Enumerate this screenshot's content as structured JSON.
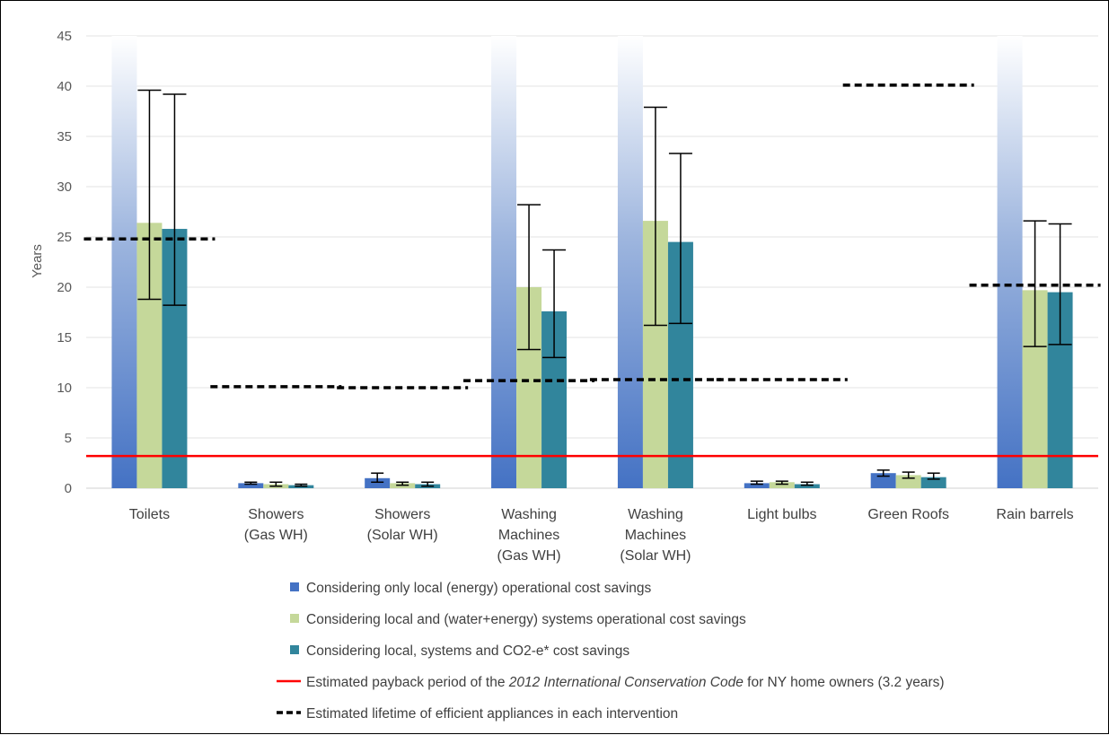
{
  "chart_data": {
    "type": "bar",
    "ylabel": "Years",
    "ylim": [
      0,
      45
    ],
    "yticks": [
      0,
      5,
      10,
      15,
      20,
      25,
      30,
      35,
      40,
      45
    ],
    "grid": true,
    "legend_position": "bottom",
    "categories": [
      [
        "Toilets"
      ],
      [
        "Showers",
        "(Gas WH)"
      ],
      [
        "Showers",
        "(Solar WH)"
      ],
      [
        "Washing",
        "Machines",
        "(Gas WH)"
      ],
      [
        "Washing",
        "Machines",
        "(Solar WH)"
      ],
      [
        "Light bulbs"
      ],
      [
        "Green Roofs"
      ],
      [
        "Rain barrels"
      ]
    ],
    "series": [
      {
        "name": "Considering only local (energy) operational cost savings",
        "color": "#4472C4",
        "values": [
          45,
          0.5,
          1.0,
          45,
          45,
          0.5,
          1.5,
          45
        ],
        "error_low": [
          null,
          0.4,
          0.6,
          null,
          null,
          0.4,
          1.2,
          null
        ],
        "error_high": [
          null,
          0.6,
          1.5,
          null,
          null,
          0.7,
          1.8,
          null
        ],
        "off_scale": [
          true,
          false,
          false,
          true,
          true,
          false,
          false,
          true
        ]
      },
      {
        "name": "Considering local and (water+energy) systems operational cost savings",
        "color": "#C5D89A",
        "values": [
          26.4,
          0.4,
          0.5,
          20.0,
          26.6,
          0.6,
          1.3,
          19.7
        ],
        "error_low": [
          18.8,
          0.2,
          0.3,
          13.8,
          16.2,
          0.4,
          1.0,
          14.1
        ],
        "error_high": [
          39.6,
          0.6,
          0.6,
          28.2,
          37.9,
          0.7,
          1.6,
          26.6
        ]
      },
      {
        "name": "Considering local, systems and CO2-e* cost savings",
        "color": "#31859C",
        "values": [
          25.8,
          0.3,
          0.4,
          17.6,
          24.5,
          0.4,
          1.1,
          19.5
        ],
        "error_low": [
          18.2,
          0.2,
          0.2,
          13.0,
          16.4,
          0.3,
          0.9,
          14.3
        ],
        "error_high": [
          39.2,
          0.4,
          0.6,
          23.7,
          33.3,
          0.6,
          1.5,
          26.3
        ]
      }
    ],
    "lifetime_lines": [
      24.8,
      10.1,
      10.0,
      10.7,
      10.8,
      10.8,
      40.1,
      20.2
    ],
    "payback_line": {
      "value": 3.2,
      "color": "#FF0000"
    },
    "legend": {
      "line1_pre": "Estimated payback period of the ",
      "line1_italic": "2012 International Conservation Code",
      "line1_post": " for NY home owners (3.2 years)",
      "line2": "Estimated lifetime of efficient appliances in each intervention"
    }
  }
}
